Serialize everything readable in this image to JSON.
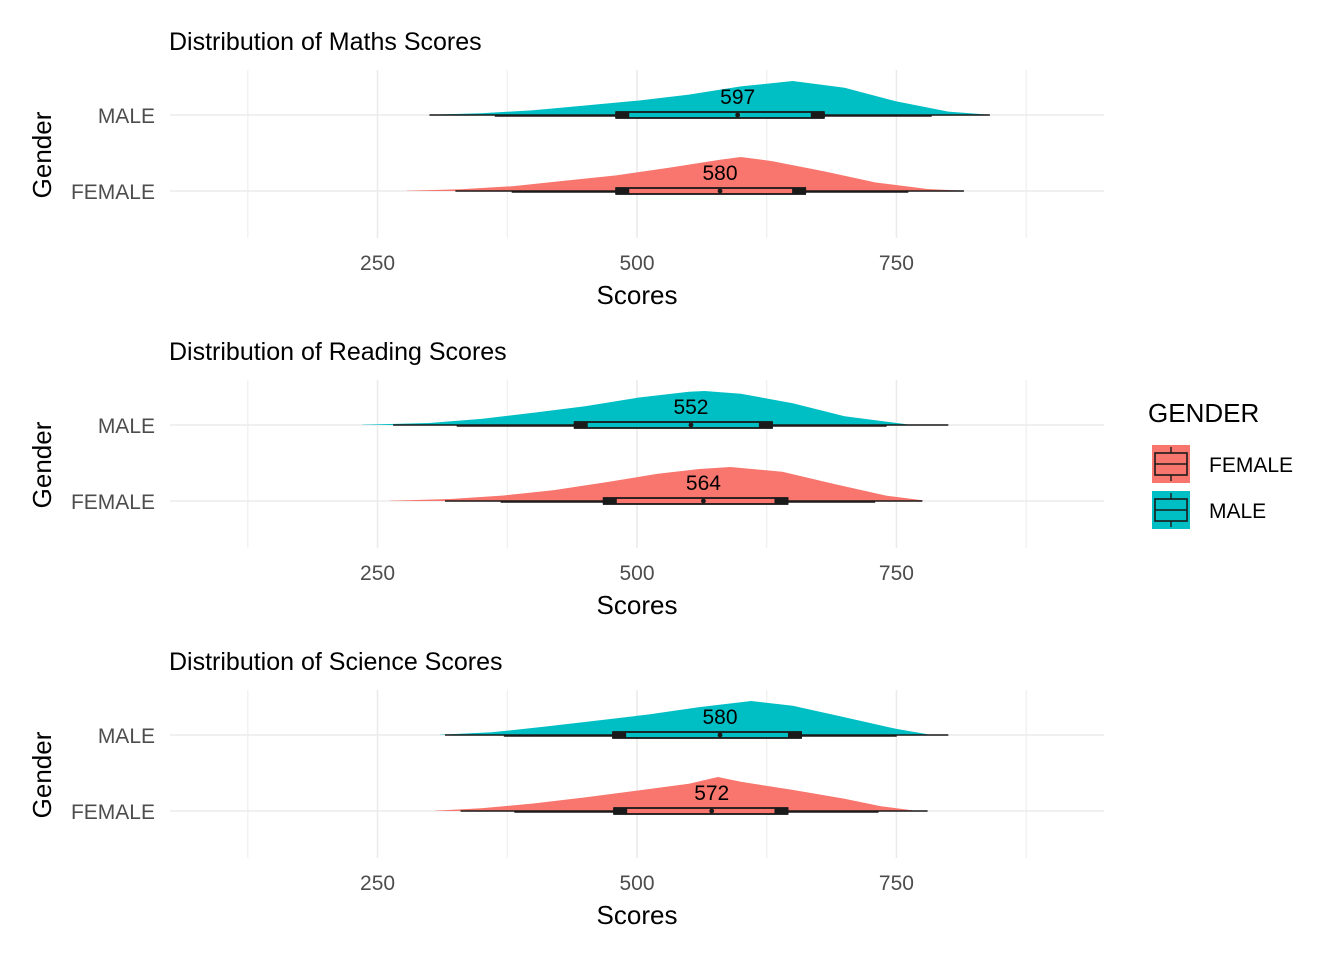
{
  "legend": {
    "title": "GENDER",
    "items": [
      {
        "label": "FEMALE",
        "color": "#F8766D"
      },
      {
        "label": "MALE",
        "color": "#00BFC4"
      }
    ],
    "placement": "right"
  },
  "colors": {
    "female": "#F8766D",
    "male": "#00BFC4",
    "grid": "#ebebeb",
    "axis_text": "#4d4d4d"
  },
  "chart_data": [
    {
      "type": "density-raincloud",
      "title": "Distribution of Maths Scores",
      "xlabel": "Scores",
      "ylabel": "Gender",
      "xlim": [
        50,
        950
      ],
      "x_ticks": [
        250,
        500,
        750
      ],
      "categories": [
        "MALE",
        "FEMALE"
      ],
      "grid": true,
      "series": [
        {
          "name": "MALE",
          "median_label": "597",
          "box": {
            "whisker_low": 300,
            "q1": 480,
            "median": 597,
            "q3": 680,
            "whisker_high": 840
          },
          "density_x": [
            300,
            350,
            400,
            450,
            500,
            550,
            600,
            650,
            700,
            750,
            800,
            840
          ],
          "density_y": [
            0.01,
            0.05,
            0.14,
            0.28,
            0.42,
            0.6,
            0.84,
            1.0,
            0.8,
            0.4,
            0.1,
            0.01
          ]
        },
        {
          "name": "FEMALE",
          "median_label": "580",
          "box": {
            "whisker_low": 325,
            "q1": 480,
            "median": 580,
            "q3": 662,
            "whisker_high": 815
          },
          "density_x": [
            278,
            330,
            380,
            430,
            480,
            530,
            580,
            600,
            630,
            680,
            730,
            780,
            815
          ],
          "density_y": [
            0.01,
            0.05,
            0.14,
            0.3,
            0.46,
            0.68,
            0.92,
            1.0,
            0.88,
            0.58,
            0.25,
            0.06,
            0.01
          ]
        }
      ]
    },
    {
      "type": "density-raincloud",
      "title": "Distribution of Reading Scores",
      "xlabel": "Scores",
      "ylabel": "Gender",
      "xlim": [
        50,
        950
      ],
      "x_ticks": [
        250,
        500,
        750
      ],
      "categories": [
        "MALE",
        "FEMALE"
      ],
      "grid": true,
      "series": [
        {
          "name": "MALE",
          "median_label": "552",
          "box": {
            "whisker_low": 265,
            "q1": 440,
            "median": 552,
            "q3": 630,
            "whisker_high": 800
          },
          "density_x": [
            235,
            300,
            350,
            400,
            450,
            500,
            550,
            565,
            600,
            650,
            700,
            760
          ],
          "density_y": [
            0.01,
            0.06,
            0.18,
            0.36,
            0.55,
            0.8,
            0.98,
            1.0,
            0.92,
            0.64,
            0.26,
            0.02
          ]
        },
        {
          "name": "FEMALE",
          "median_label": "564",
          "box": {
            "whisker_low": 315,
            "q1": 468,
            "median": 564,
            "q3": 645,
            "whisker_high": 775
          },
          "density_x": [
            262,
            320,
            370,
            420,
            470,
            520,
            560,
            590,
            640,
            690,
            740,
            775
          ],
          "density_y": [
            0.01,
            0.06,
            0.16,
            0.32,
            0.55,
            0.8,
            0.94,
            1.0,
            0.86,
            0.5,
            0.16,
            0.02
          ]
        }
      ]
    },
    {
      "type": "density-raincloud",
      "title": "Distribution of Science Scores",
      "xlabel": "Scores",
      "ylabel": "Gender",
      "xlim": [
        50,
        950
      ],
      "x_ticks": [
        250,
        500,
        750
      ],
      "categories": [
        "MALE",
        "FEMALE"
      ],
      "grid": true,
      "series": [
        {
          "name": "MALE",
          "median_label": "580",
          "box": {
            "whisker_low": 315,
            "q1": 477,
            "median": 580,
            "q3": 658,
            "whisker_high": 800
          },
          "density_x": [
            310,
            360,
            410,
            460,
            510,
            560,
            610,
            650,
            700,
            750,
            780
          ],
          "density_y": [
            0.01,
            0.08,
            0.24,
            0.42,
            0.6,
            0.82,
            1.0,
            0.86,
            0.52,
            0.18,
            0.02
          ]
        },
        {
          "name": "FEMALE",
          "median_label": "572",
          "box": {
            "whisker_low": 330,
            "q1": 478,
            "median": 572,
            "q3": 645,
            "whisker_high": 780
          },
          "density_x": [
            305,
            350,
            400,
            450,
            500,
            550,
            578,
            600,
            650,
            700,
            735,
            765
          ],
          "density_y": [
            0.01,
            0.08,
            0.22,
            0.4,
            0.6,
            0.8,
            1.0,
            0.86,
            0.62,
            0.36,
            0.14,
            0.02
          ]
        }
      ]
    }
  ]
}
